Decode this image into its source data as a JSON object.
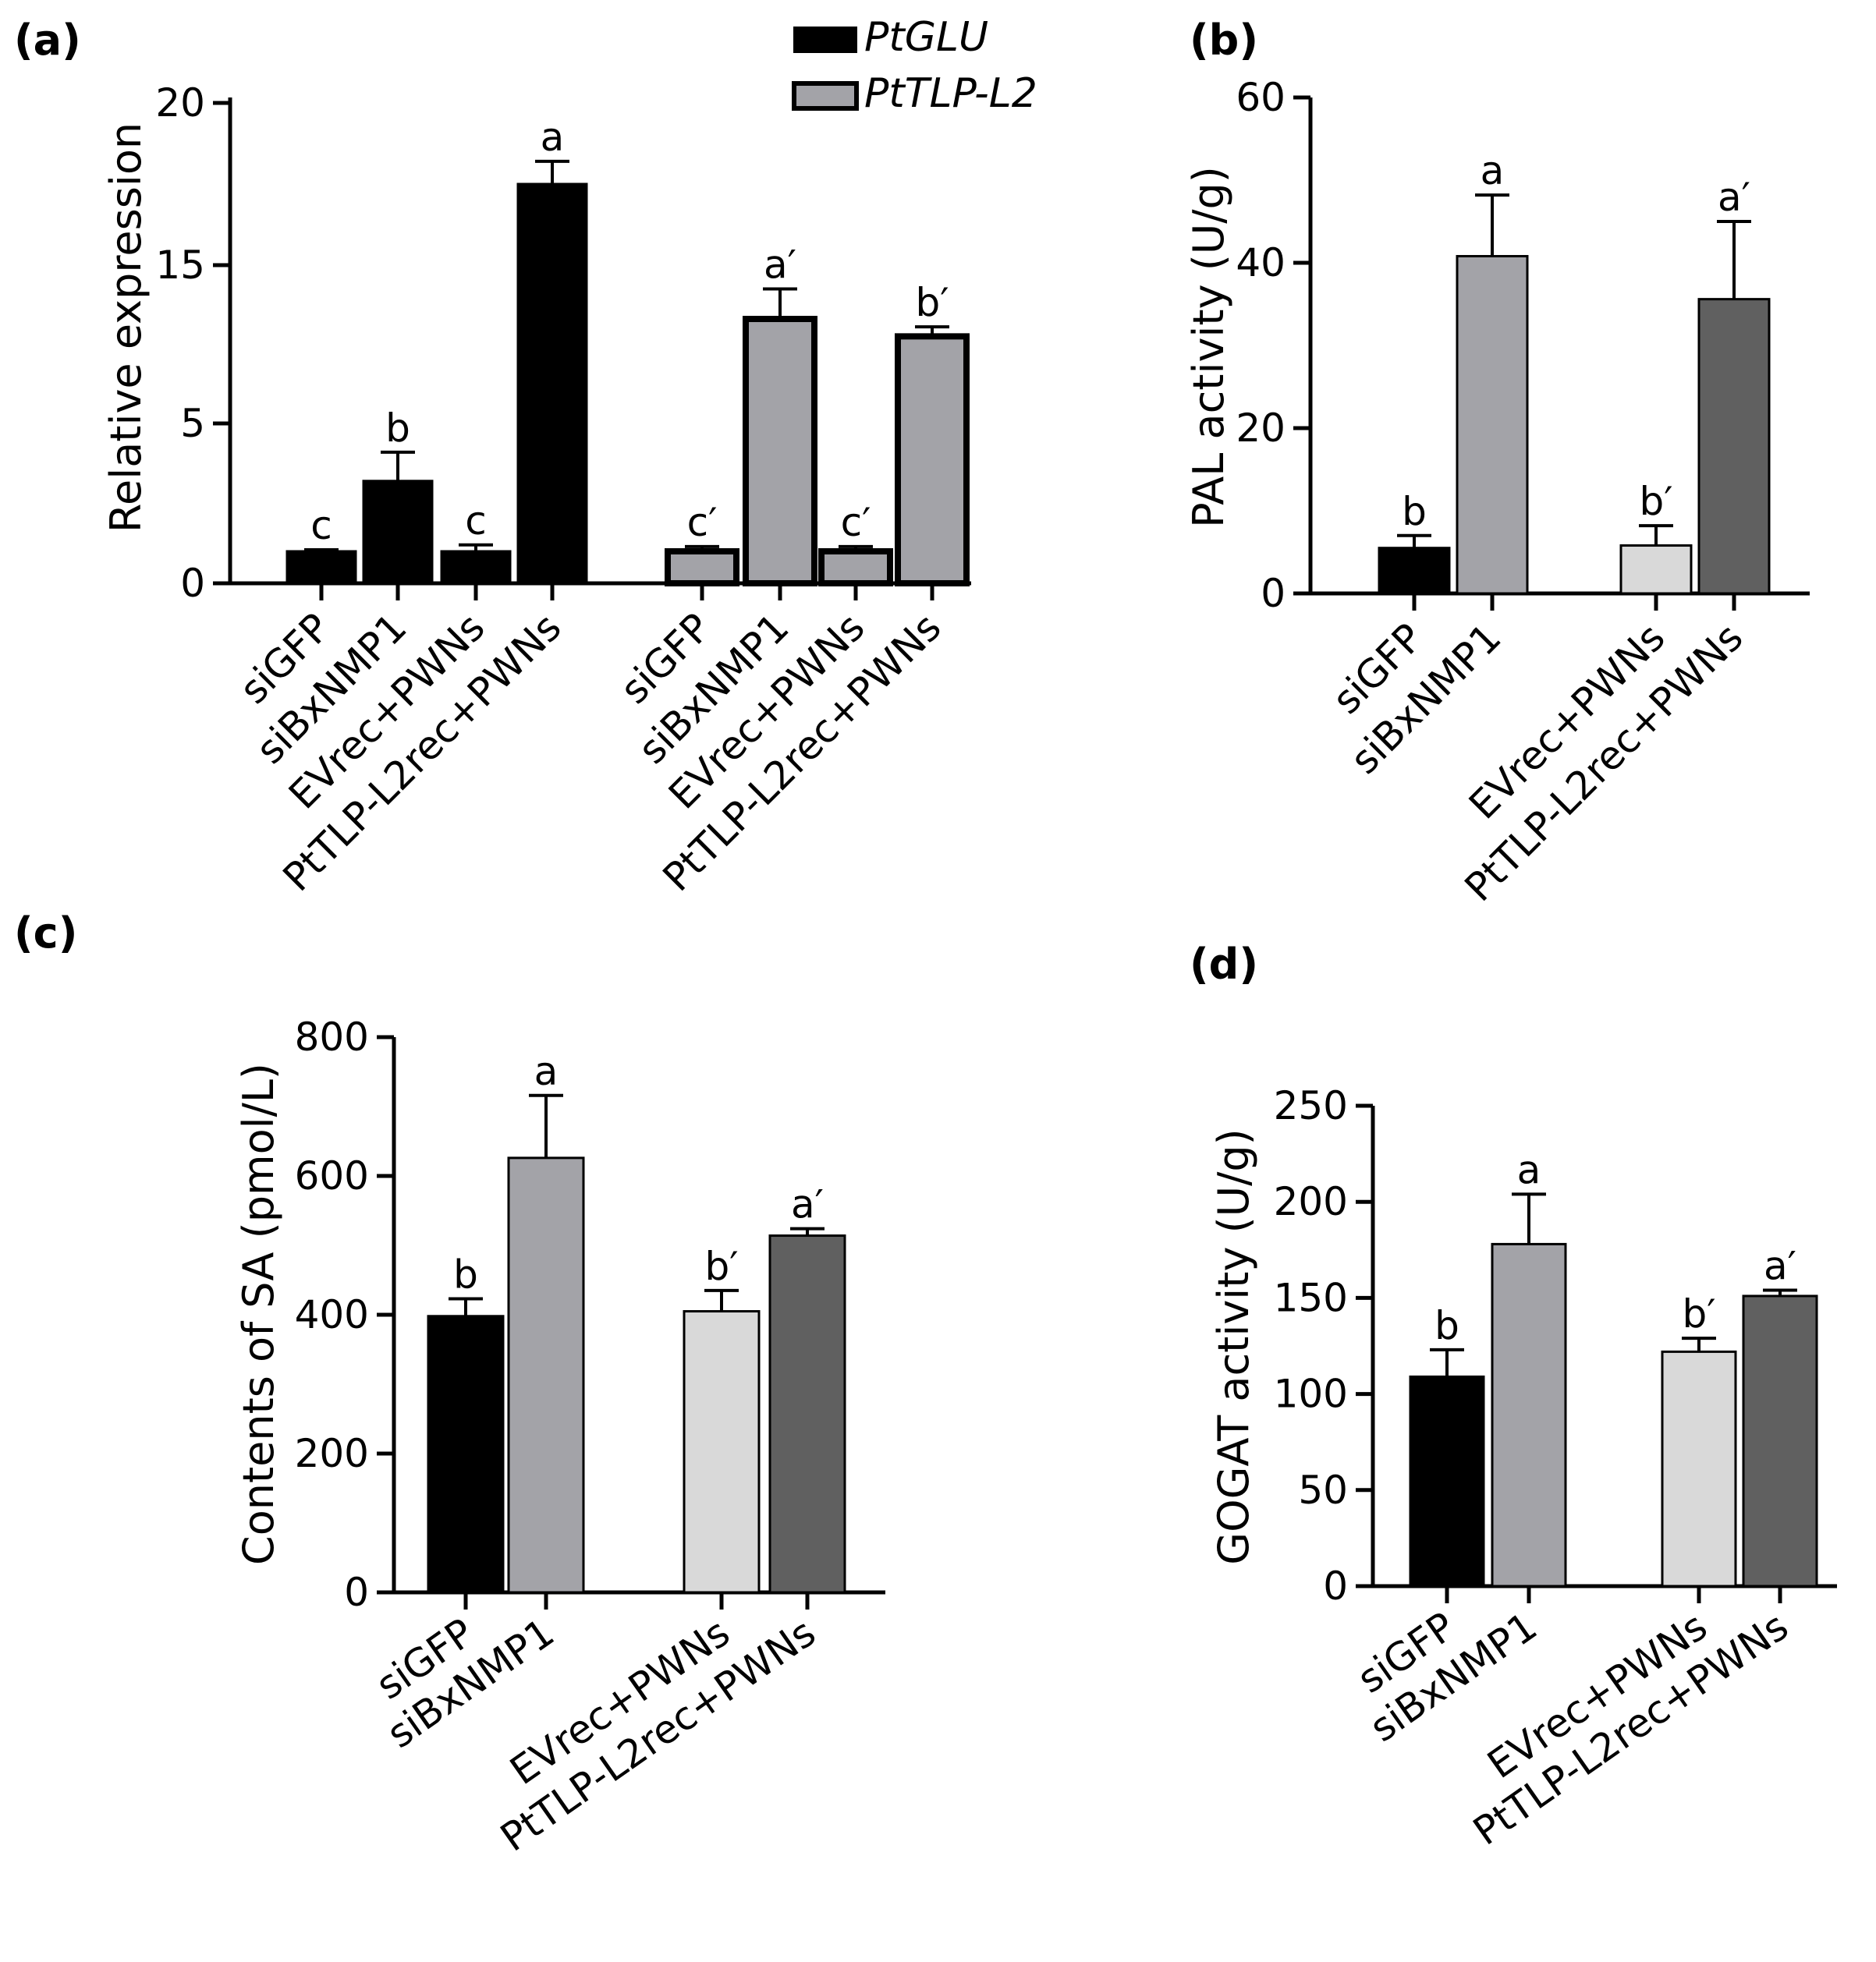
{
  "figure": {
    "chart_data": [
      {
        "panel": "(a)",
        "type": "bar",
        "ylabel": "Relative expression",
        "ylim": [
          0,
          20
        ],
        "yticks": [
          "0",
          "5",
          "15",
          "20"
        ],
        "legend_position": "top",
        "series": [
          {
            "name": "PtGLU",
            "color": "#000000",
            "stroke": "#000000",
            "categories": [
              "siGFP",
              "siBxNMP1",
              "EVrec+PWNs",
              "PtTLP-L2rec+PWNs"
            ],
            "values": [
              1.0,
              3.2,
              1.0,
              17.5
            ],
            "errors": [
              0.05,
              0.9,
              0.2,
              0.7
            ],
            "labels": [
              "c",
              "b",
              "c",
              "a"
            ]
          },
          {
            "name": "PtTLP-L2",
            "color": "#a3a3a8",
            "stroke": "#000000",
            "categories": [
              "siGFP",
              "siBxNMP1",
              "EVrec+PWNs",
              "PtTLP-L2rec+PWNs"
            ],
            "values": [
              1.0,
              11.6,
              1.0,
              10.5
            ],
            "errors": [
              0.15,
              1.9,
              0.15,
              0.6
            ],
            "labels": [
              "c′",
              "a′",
              "c′",
              "b′"
            ]
          }
        ]
      },
      {
        "panel": "(b)",
        "type": "bar",
        "ylabel": "PAL activity (U/g)",
        "ylim": [
          0,
          60
        ],
        "yticks": [
          "0",
          "20",
          "40",
          "60"
        ],
        "categories": [
          "siGFP",
          "siBxNMP1",
          "EVrec+PWNs",
          "PtTLP-L2rec+PWNs"
        ],
        "values": [
          5.5,
          40.8,
          5.8,
          35.6
        ],
        "errors": [
          1.5,
          7.4,
          2.4,
          9.4
        ],
        "labels": [
          "b",
          "a",
          "b′",
          "a′"
        ],
        "colors": [
          "#000000",
          "#a3a3a8",
          "#d9d9d9",
          "#606060"
        ]
      },
      {
        "panel": "(c)",
        "type": "bar",
        "ylabel": "Contents of SA (pmol/L)",
        "ylim": [
          0,
          800
        ],
        "yticks": [
          "0",
          "200",
          "400",
          "600",
          "800"
        ],
        "categories": [
          "siGFP",
          "siBxNMP1",
          "EVrec+PWNs",
          "PtTLP-L2rec+PWNs"
        ],
        "values": [
          398,
          626,
          405,
          514
        ],
        "errors": [
          25,
          90,
          30,
          10
        ],
        "labels": [
          "b",
          "a",
          "b′",
          "a′"
        ],
        "colors": [
          "#000000",
          "#a3a3a8",
          "#d9d9d9",
          "#606060"
        ]
      },
      {
        "panel": "(d)",
        "type": "bar",
        "ylabel": "GOGAT activity (U/g)",
        "ylim": [
          0,
          250
        ],
        "yticks": [
          "0",
          "50",
          "100",
          "150",
          "200",
          "250"
        ],
        "categories": [
          "siGFP",
          "siBxNMP1",
          "EVrec+PWNs",
          "PtTLP-L2rec+PWNs"
        ],
        "values": [
          109,
          178,
          122,
          151
        ],
        "errors": [
          14,
          26,
          7,
          3
        ],
        "labels": [
          "b",
          "a",
          "b′",
          "a′"
        ],
        "colors": [
          "#000000",
          "#a3a3a8",
          "#d9d9d9",
          "#606060"
        ]
      }
    ]
  }
}
